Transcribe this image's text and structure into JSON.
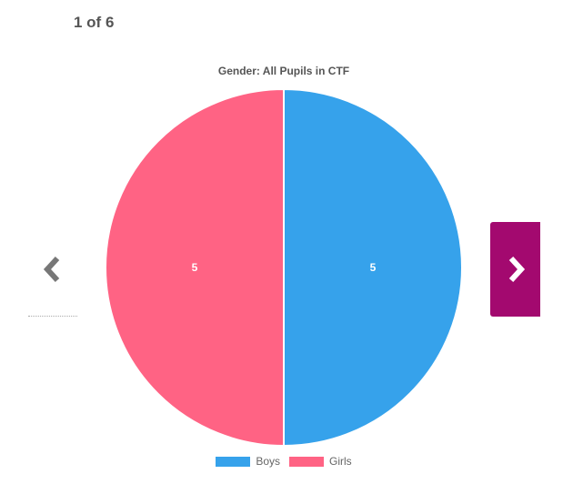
{
  "pager": {
    "text": "1 of 6"
  },
  "chart_data": {
    "type": "pie",
    "title": "Gender: All Pupils in CTF",
    "slices": [
      {
        "name": "Boys",
        "value": 5,
        "color": "#36a2eb"
      },
      {
        "name": "Girls",
        "value": 5,
        "color": "#ff6384"
      }
    ],
    "legend_position": "bottom",
    "data_labels": true
  },
  "colors": {
    "next_button": "#a3096f",
    "prev_arrow": "#777777",
    "next_arrow": "#ffffff"
  },
  "icons": {
    "prev": "chevron-left-icon",
    "next": "chevron-right-icon"
  }
}
